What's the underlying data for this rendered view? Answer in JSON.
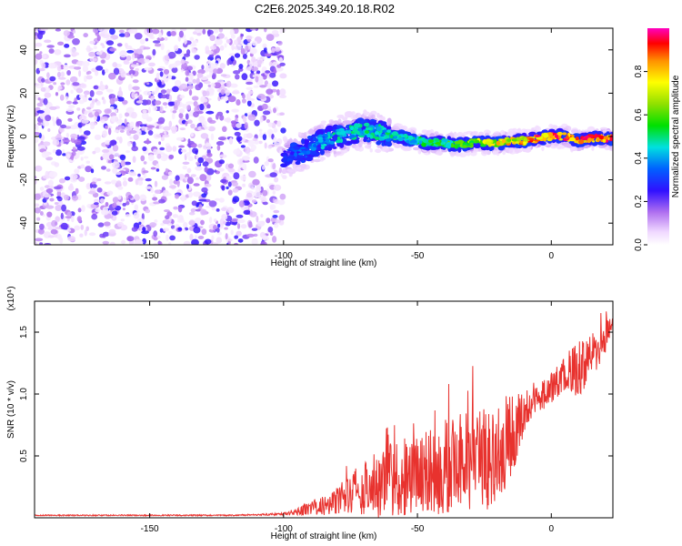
{
  "title": "C2E6.2025.349.20.18.R02",
  "chart_data": [
    {
      "type": "heatmap",
      "name": "spectrogram",
      "xlabel": "Height of straight line (km)",
      "ylabel": "Frequency (Hz)",
      "xlim": [
        -193,
        23
      ],
      "ylim": [
        -50,
        50
      ],
      "xticks": [
        -150,
        -100,
        -50,
        0
      ],
      "xtick_labels": [
        "-150",
        "-100",
        "-50",
        "0"
      ],
      "yticks": [
        -40,
        -20,
        0,
        20,
        40
      ],
      "ytick_labels": [
        "-40",
        "-20",
        "0",
        "20",
        "40"
      ],
      "noise_region_x": [
        -193,
        -100
      ],
      "signal_track": {
        "x": [
          -100,
          -95,
          -90,
          -85,
          -80,
          -75,
          -70,
          -65,
          -60,
          -55,
          -50,
          -45,
          -40,
          -35,
          -30,
          -25,
          -20,
          -15,
          -10,
          -5,
          0,
          5,
          10,
          15,
          20,
          23
        ],
        "freq": [
          -10,
          -8,
          -5,
          -2,
          0,
          2,
          3,
          2,
          1,
          -1,
          -2,
          -3,
          -3,
          -4,
          -3,
          -3,
          -3,
          -2,
          -2,
          -1,
          0,
          0,
          -2,
          -1,
          -1,
          -1
        ],
        "amplitude": [
          0.3,
          0.35,
          0.4,
          0.45,
          0.5,
          0.5,
          0.5,
          0.5,
          0.5,
          0.5,
          0.55,
          0.55,
          0.6,
          0.6,
          0.7,
          0.75,
          0.8,
          0.85,
          0.9,
          0.95,
          1.0,
          1.0,
          0.95,
          1.0,
          0.95,
          0.9
        ]
      },
      "colorbar": {
        "label": "Normalized spectral amplitude",
        "range": [
          0,
          1
        ],
        "ticks": [
          0.0,
          0.2,
          0.4,
          0.6,
          0.8
        ],
        "tick_labels": [
          "0.0",
          "0.2",
          "0.4",
          "0.6",
          "0.8"
        ]
      },
      "grid": false,
      "legend": "none"
    },
    {
      "type": "line",
      "name": "snr",
      "xlabel": "Height of straight line (km)",
      "ylabel": "SNR (10 * v/v)",
      "scale_label": "(x10⁴)",
      "xlim": [
        -193,
        23
      ],
      "ylim": [
        0,
        1.75
      ],
      "xticks": [
        -150,
        -100,
        -50,
        0
      ],
      "xtick_labels": [
        "-150",
        "-100",
        "-50",
        "0"
      ],
      "yticks": [
        0.5,
        1.0,
        1.5
      ],
      "ytick_labels": [
        "0.5",
        "1.0",
        "1.5"
      ],
      "series": [
        {
          "color": "#e8322e",
          "x": [
            -193,
            -150,
            -120,
            -100,
            -95,
            -90,
            -85,
            -80,
            -75,
            -70,
            -65,
            -60,
            -55,
            -50,
            -45,
            -40,
            -35,
            -30,
            -25,
            -20,
            -15,
            -10,
            -5,
            0,
            5,
            10,
            15,
            20,
            23
          ],
          "mid": [
            0.02,
            0.02,
            0.02,
            0.03,
            0.05,
            0.08,
            0.1,
            0.14,
            0.18,
            0.24,
            0.28,
            0.3,
            0.33,
            0.35,
            0.37,
            0.4,
            0.42,
            0.45,
            0.5,
            0.55,
            0.65,
            0.85,
            0.95,
            1.05,
            1.15,
            1.2,
            1.3,
            1.45,
            1.55
          ],
          "amp": [
            0.005,
            0.005,
            0.005,
            0.01,
            0.03,
            0.06,
            0.08,
            0.12,
            0.18,
            0.22,
            0.28,
            0.3,
            0.32,
            0.35,
            0.35,
            0.38,
            0.4,
            0.42,
            0.45,
            0.45,
            0.35,
            0.15,
            0.12,
            0.12,
            0.15,
            0.25,
            0.2,
            0.15,
            0.1
          ]
        }
      ],
      "grid": false,
      "legend": "none"
    }
  ]
}
